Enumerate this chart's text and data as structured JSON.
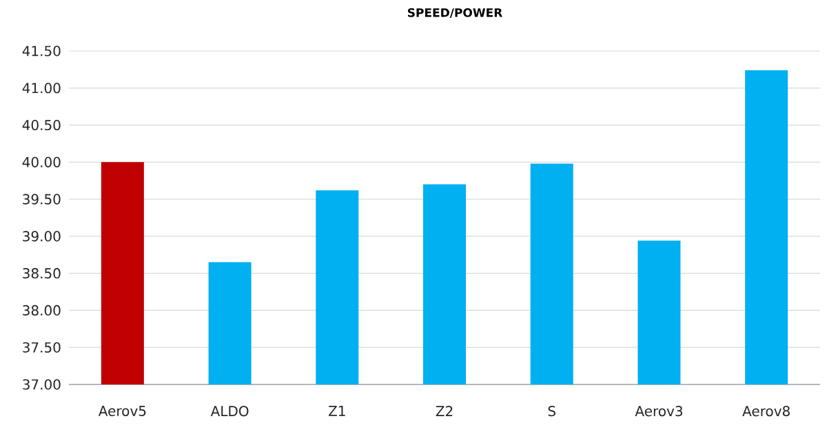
{
  "chart_data": {
    "type": "bar",
    "title": "SPEED/POWER",
    "categories": [
      "Aerov5",
      "ALDO",
      "Z1",
      "Z2",
      "S",
      "Aerov3",
      "Aerov8"
    ],
    "values": [
      40.0,
      38.65,
      39.62,
      39.7,
      39.98,
      38.94,
      41.24
    ],
    "colors": [
      "#c00000",
      "#00b0f0",
      "#00b0f0",
      "#00b0f0",
      "#00b0f0",
      "#00b0f0",
      "#00b0f0"
    ],
    "ylim": [
      37,
      41.5
    ],
    "yticks": [
      {
        "value": 37,
        "label": "37.00"
      },
      {
        "value": 37.5,
        "label": "37.50"
      },
      {
        "value": 38,
        "label": "38.00"
      },
      {
        "value": 38.5,
        "label": "38.50"
      },
      {
        "value": 39,
        "label": "39.00"
      },
      {
        "value": 39.5,
        "label": "39.50"
      },
      {
        "value": 40,
        "label": "40.00"
      },
      {
        "value": 40.5,
        "label": "40.50"
      },
      {
        "value": 41,
        "label": "41.00"
      },
      {
        "value": 41.5,
        "label": "41.50"
      }
    ],
    "grid": "y"
  }
}
